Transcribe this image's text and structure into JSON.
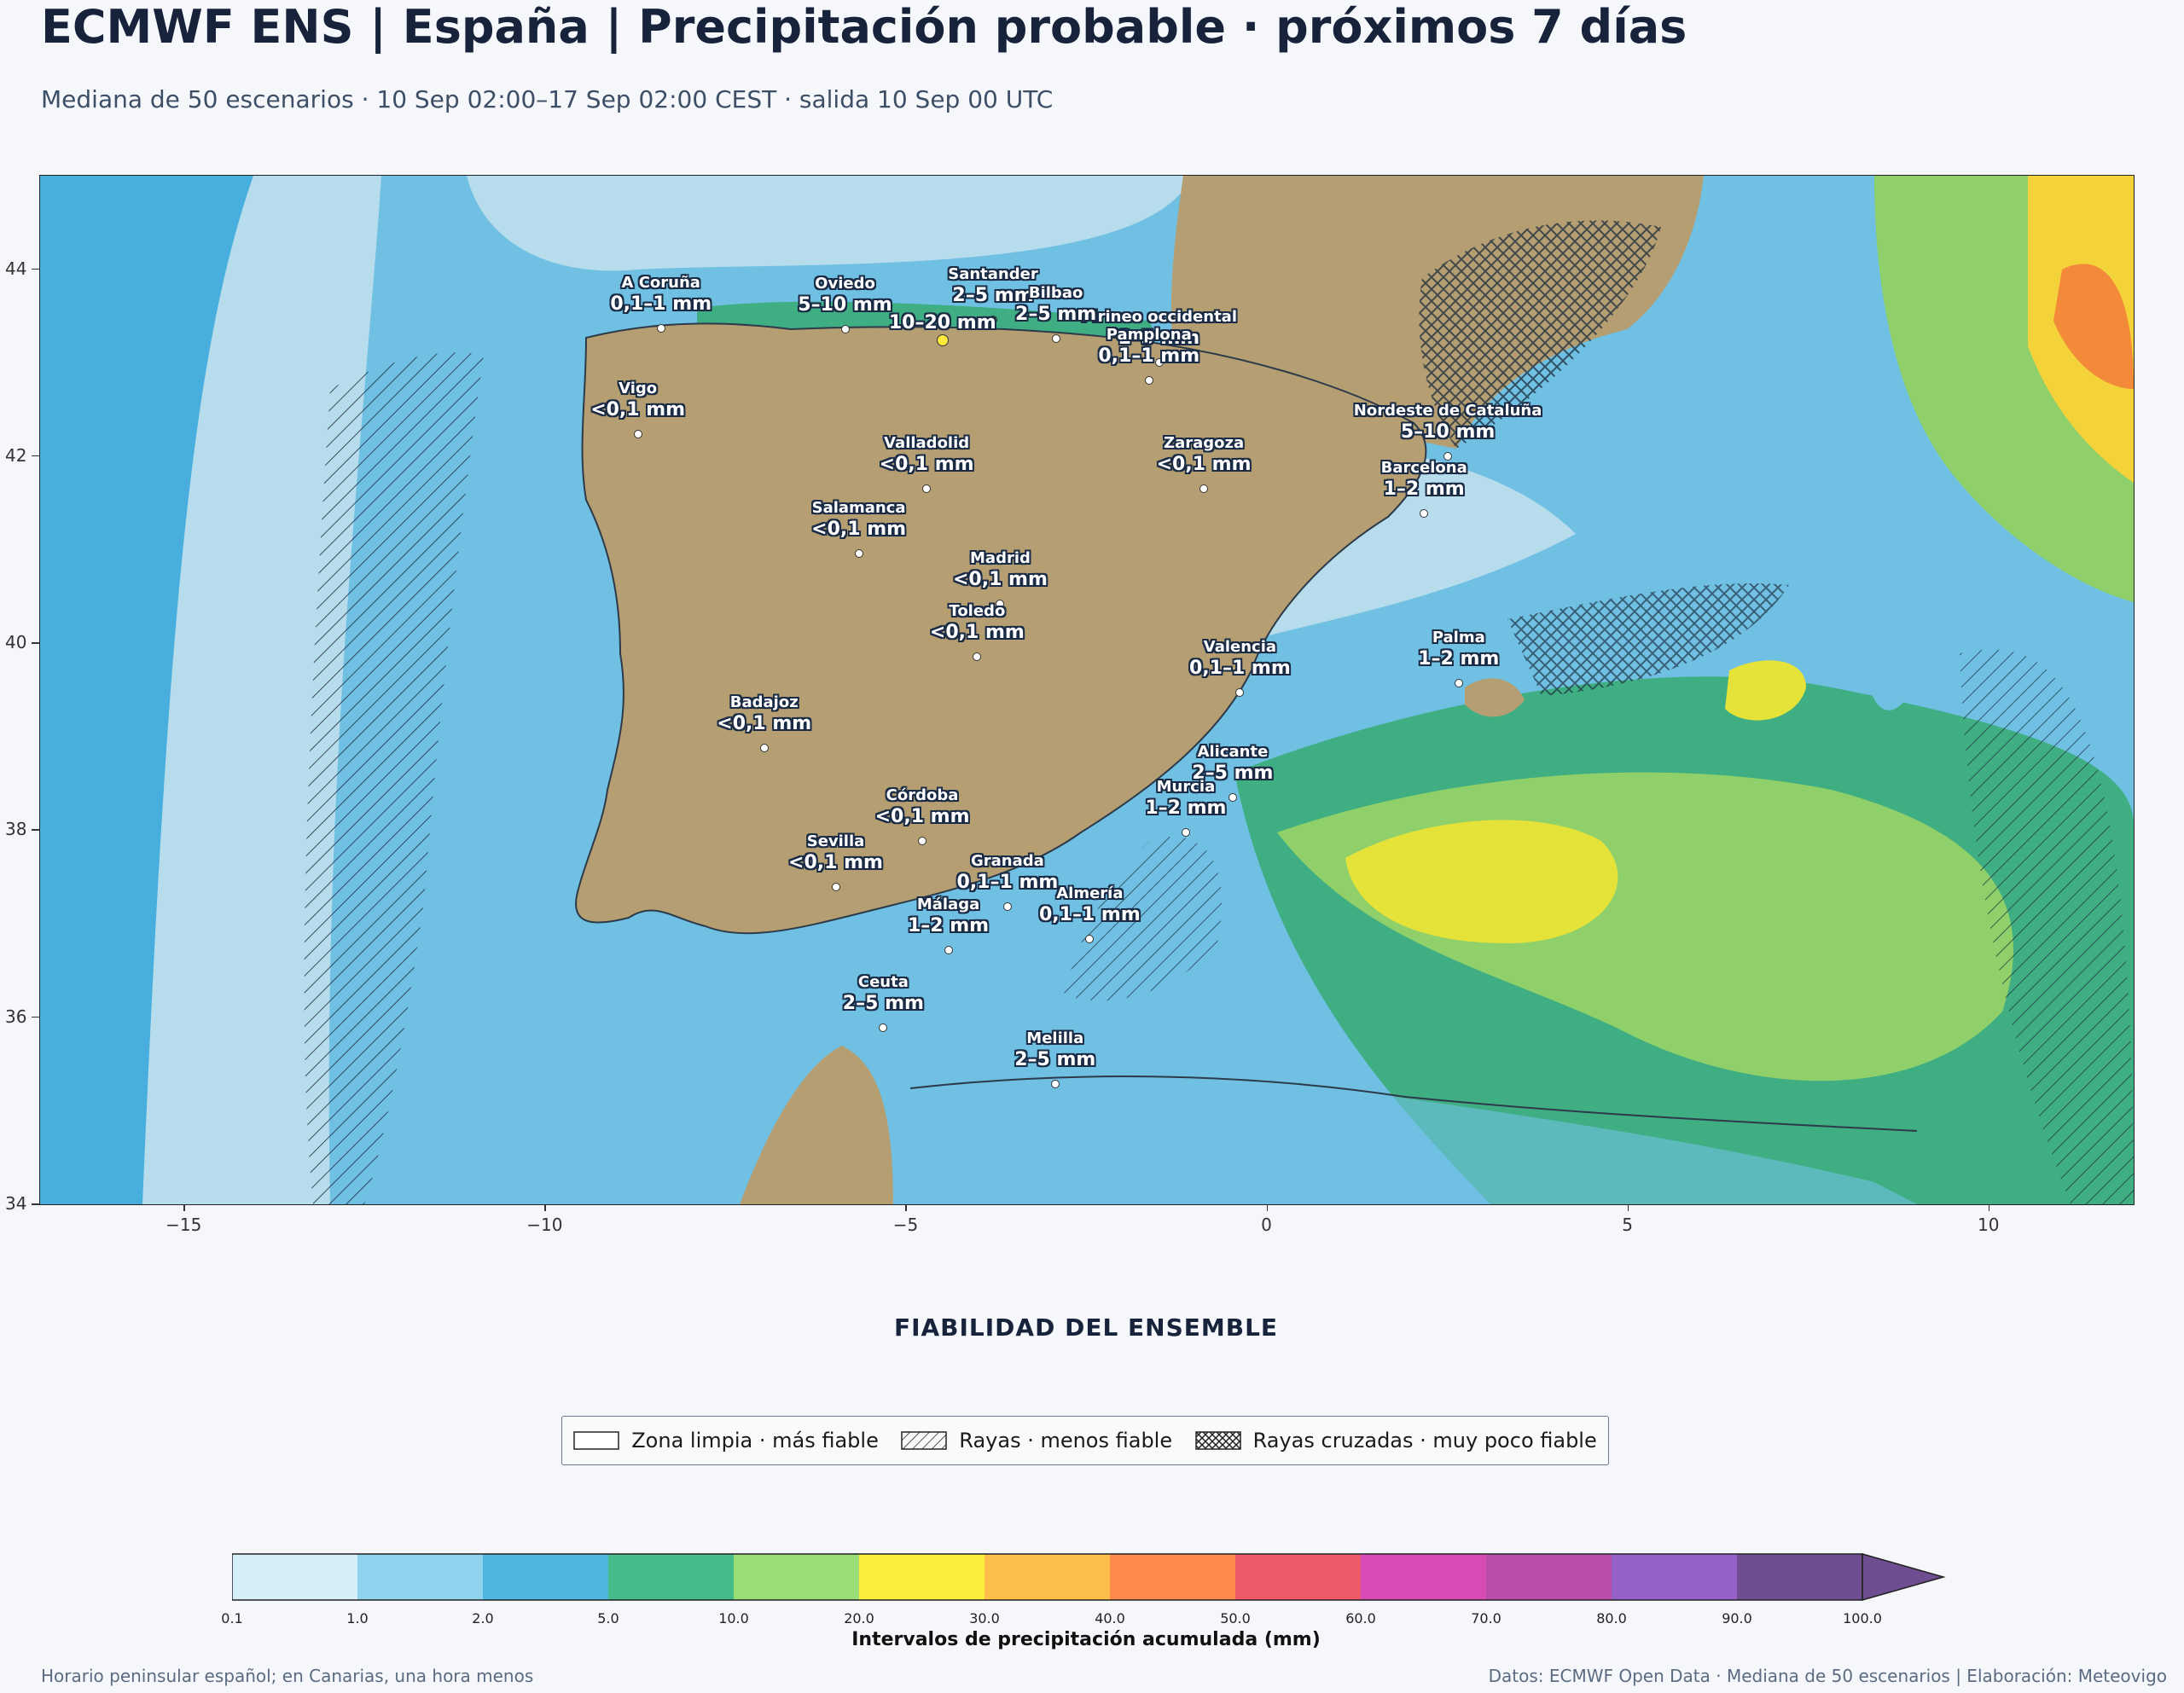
{
  "header": {
    "title": "ECMWF ENS | España | Precipitación probable · próximos 7 días",
    "subtitle": "Mediana de 50 escenarios · 10 Sep 02:00–17 Sep 02:00 CEST · salida 10 Sep 00 UTC"
  },
  "map": {
    "extent": {
      "lon": [
        -17,
        12
      ],
      "lat": [
        34,
        45
      ]
    },
    "y_ticks": [
      "44",
      "42",
      "40",
      "38",
      "36",
      "34"
    ],
    "x_ticks": [
      "−15",
      "−10",
      "−5",
      "0",
      "5",
      "10"
    ],
    "cities": [
      {
        "name": "A Coruña",
        "value": "0,1–1 mm",
        "lon": -8.4,
        "lat": 43.37
      },
      {
        "name": "Oviedo",
        "value": "5–10 mm",
        "lon": -5.85,
        "lat": 43.36
      },
      {
        "name": "Santander",
        "value": "2–5 mm",
        "lon": -3.8,
        "lat": 43.46
      },
      {
        "name": "Pirineo occidental",
        "value": "2–5 mm",
        "lon": -1.5,
        "lat": 43.0
      },
      {
        "name": "",
        "value": "10–20 mm",
        "lon": -4.5,
        "lat": 43.24
      },
      {
        "name": "Pamplona",
        "value": "0,1–1 mm",
        "lon": -1.64,
        "lat": 42.81
      },
      {
        "name": "Bilbao",
        "value": "2–5 mm",
        "lon": -2.93,
        "lat": 43.26
      },
      {
        "name": "Nordeste de Cataluña",
        "value": "5–10 mm",
        "lon": 2.5,
        "lat": 42.0
      },
      {
        "name": "Vigo",
        "value": "<0,1 mm",
        "lon": -8.72,
        "lat": 42.24
      },
      {
        "name": "Valladolid",
        "value": "<0,1 mm",
        "lon": -4.72,
        "lat": 41.65
      },
      {
        "name": "Zaragoza",
        "value": "<0,1 mm",
        "lon": -0.88,
        "lat": 41.65
      },
      {
        "name": "Barcelona",
        "value": "1–2 mm",
        "lon": 2.17,
        "lat": 41.39
      },
      {
        "name": "Salamanca",
        "value": "<0,1 mm",
        "lon": -5.66,
        "lat": 40.96
      },
      {
        "name": "Madrid",
        "value": "<0,1 mm",
        "lon": -3.7,
        "lat": 40.42
      },
      {
        "name": "Valencia",
        "value": "0,1–1 mm",
        "lon": -0.38,
        "lat": 39.47
      },
      {
        "name": "Toledo",
        "value": "<0,1 mm",
        "lon": -4.02,
        "lat": 39.86
      },
      {
        "name": "Badajoz",
        "value": "<0,1 mm",
        "lon": -6.97,
        "lat": 38.88
      },
      {
        "name": "Palma",
        "value": "1–2 mm",
        "lon": 2.65,
        "lat": 39.57
      },
      {
        "name": "Córdoba",
        "value": "<0,1 mm",
        "lon": -4.78,
        "lat": 37.89
      },
      {
        "name": "Alicante",
        "value": "2–5 mm",
        "lon": -0.48,
        "lat": 38.35
      },
      {
        "name": "Murcia",
        "value": "1–2 mm",
        "lon": -1.13,
        "lat": 37.98
      },
      {
        "name": "Granada",
        "value": "0,1–1 mm",
        "lon": -3.6,
        "lat": 37.18
      },
      {
        "name": "Sevilla",
        "value": "<0,1 mm",
        "lon": -5.98,
        "lat": 37.39
      },
      {
        "name": "Almería",
        "value": "0,1–1 mm",
        "lon": -2.46,
        "lat": 36.84
      },
      {
        "name": "Málaga",
        "value": "1–2 mm",
        "lon": -4.42,
        "lat": 36.72
      },
      {
        "name": "Ceuta",
        "value": "2–5 mm",
        "lon": -5.32,
        "lat": 35.89
      },
      {
        "name": "Melilla",
        "value": "2–5 mm",
        "lon": -2.94,
        "lat": 35.29
      }
    ]
  },
  "reliability": {
    "title": "FIABILIDAD DEL ENSEMBLE",
    "items": [
      {
        "label": "Zona limpia · más fiable",
        "pattern": "none"
      },
      {
        "label": "Rayas · menos fiable",
        "pattern": "hatch"
      },
      {
        "label": "Rayas cruzadas · muy poco fiable",
        "pattern": "crosshatch"
      }
    ]
  },
  "colorbar": {
    "label": "Intervalos de precipitación acumulada (mm)",
    "ticks": [
      "0.1",
      "1.0",
      "2.0",
      "5.0",
      "10.0",
      "20.0",
      "30.0",
      "40.0",
      "50.0",
      "60.0",
      "70.0",
      "80.0",
      "90.0",
      "100.0"
    ],
    "colors": [
      "#d6eef8",
      "#8fd2ee",
      "#4fb6e0",
      "#44bb88",
      "#99dd77",
      "#fcee3c",
      "#fdbf4a",
      "#fd8a4a",
      "#ef5a6a",
      "#d84bb5",
      "#b94ea8",
      "#9561c8",
      "#6e4e90"
    ]
  },
  "footer": {
    "left": "Horario peninsular español; en Canarias, una hora menos",
    "right": "Datos: ECMWF Open Data · Mediana de 50 escenarios | Elaboración: Meteovigo"
  }
}
